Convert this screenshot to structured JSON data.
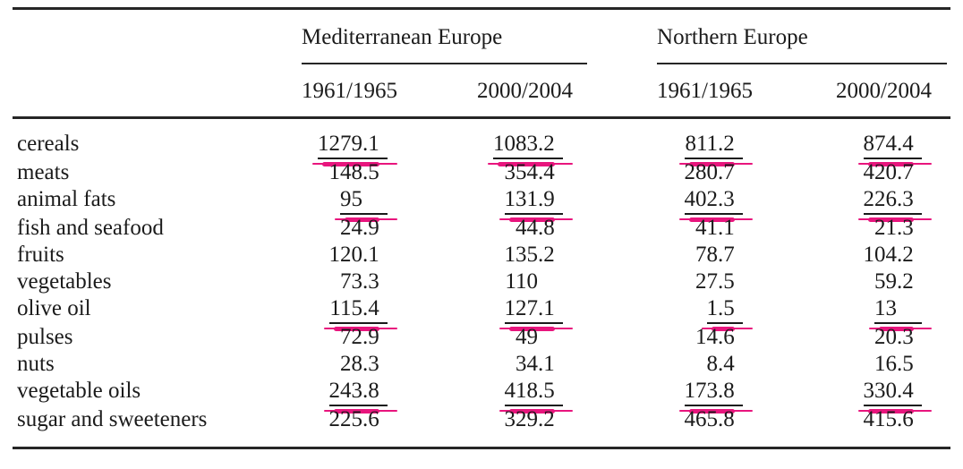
{
  "annotation": {
    "pink_marker_color": "#e8157d",
    "black_underline_color": "#1a1a1a"
  },
  "chart_data": {
    "type": "table",
    "column_groups": [
      {
        "label": "Mediterranean Europe",
        "columns": [
          "1961/1965",
          "2000/2004"
        ]
      },
      {
        "label": "Northern Europe",
        "columns": [
          "1961/1965",
          "2000/2004"
        ]
      }
    ],
    "rows": [
      {
        "label": "cereals",
        "values": [
          "1279.1",
          "1083.2",
          "811.2",
          "874.4"
        ],
        "underlined": true
      },
      {
        "label": "meats",
        "values": [
          "148.5",
          "354.4",
          "280.7",
          "420.7"
        ],
        "underlined": false
      },
      {
        "label": "animal fats",
        "values": [
          "95",
          "131.9",
          "402.3",
          "226.3"
        ],
        "underlined": true
      },
      {
        "label": "fish and seafood",
        "values": [
          "24.9",
          "44.8",
          "41.1",
          "21.3"
        ],
        "underlined": false
      },
      {
        "label": "fruits",
        "values": [
          "120.1",
          "135.2",
          "78.7",
          "104.2"
        ],
        "underlined": false
      },
      {
        "label": "vegetables",
        "values": [
          "73.3",
          "110",
          "27.5",
          "59.2"
        ],
        "underlined": false
      },
      {
        "label": "olive oil",
        "values": [
          "115.4",
          "127.1",
          "1.5",
          "13"
        ],
        "underlined": true
      },
      {
        "label": "pulses",
        "values": [
          "72.9",
          "49",
          "14.6",
          "20.3"
        ],
        "underlined": false
      },
      {
        "label": "nuts",
        "values": [
          "28.3",
          "34.1",
          "8.4",
          "16.5"
        ],
        "underlined": false
      },
      {
        "label": "vegetable oils",
        "values": [
          "243.8",
          "418.5",
          "173.8",
          "330.4"
        ],
        "underlined": true
      },
      {
        "label": "sugar and sweeteners",
        "values": [
          "225.6",
          "329.2",
          "465.8",
          "415.6"
        ],
        "underlined": false
      }
    ]
  }
}
